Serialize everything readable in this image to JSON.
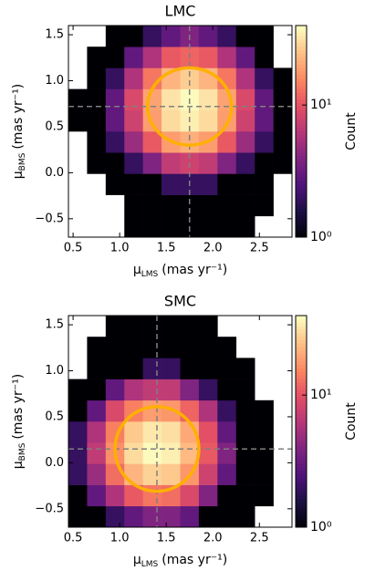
{
  "chart_data": [
    {
      "type": "heatmap",
      "title": "LMC",
      "x_label": {
        "symbol": "μ",
        "sub": "LMS",
        "unit": "(mas yr⁻¹)"
      },
      "y_label": {
        "symbol": "μ",
        "sub": "BMS",
        "unit": "(mas yr⁻¹)"
      },
      "xlim": [
        0.45,
        2.85
      ],
      "ylim": [
        -0.7,
        1.6
      ],
      "xticks": [
        0.5,
        {
          "value": 1.0,
          "label": "1.0"
        },
        1.5,
        {
          "value": 2.0,
          "label": "2.0"
        },
        2.5
      ],
      "yticks": [
        {
          "value": -0.5,
          "label": "−0.5"
        },
        {
          "value": 0.0,
          "label": "0.0"
        },
        0.5,
        {
          "value": 1.0,
          "label": "1.0"
        },
        1.5
      ],
      "x_bins": [
        0.45,
        0.65,
        0.85,
        1.05,
        1.25,
        1.45,
        1.65,
        1.85,
        2.05,
        2.25,
        2.45,
        2.65,
        2.85
      ],
      "y_bins": [
        -0.7,
        -0.47,
        -0.24,
        -0.01,
        0.22,
        0.45,
        0.68,
        0.91,
        1.14,
        1.37,
        1.6
      ],
      "counts": [
        [
          0,
          0,
          0,
          1,
          1,
          1,
          1,
          1,
          1,
          1,
          0,
          0
        ],
        [
          0,
          0,
          0,
          1,
          1,
          1,
          1,
          1,
          1,
          1,
          1,
          0
        ],
        [
          0,
          0,
          1,
          1,
          1,
          2,
          2,
          2,
          1,
          1,
          1,
          0
        ],
        [
          0,
          1,
          1,
          2,
          4,
          7,
          8,
          7,
          4,
          2,
          1,
          1
        ],
        [
          0,
          1,
          2,
          5,
          11,
          19,
          22,
          19,
          11,
          5,
          2,
          1
        ],
        [
          1,
          1,
          3,
          8,
          19,
          31,
          36,
          31,
          19,
          8,
          3,
          1
        ],
        [
          1,
          1,
          3,
          9,
          20,
          33,
          39,
          33,
          20,
          9,
          3,
          1
        ],
        [
          0,
          1,
          2,
          6,
          14,
          23,
          28,
          23,
          14,
          6,
          2,
          1
        ],
        [
          0,
          1,
          1,
          3,
          6,
          11,
          12,
          11,
          6,
          3,
          1,
          0
        ],
        [
          0,
          0,
          1,
          1,
          2,
          3,
          4,
          3,
          2,
          1,
          1,
          0
        ]
      ],
      "colormap": "magma",
      "color_scale": "log",
      "clim": [
        1,
        40
      ],
      "cticks": [
        {
          "value": 1,
          "label": "10⁰"
        },
        {
          "value": 10,
          "label": "10¹"
        }
      ],
      "colorbar_label": "Count",
      "circle": {
        "center": [
          1.75,
          0.72
        ],
        "radius_x": 0.45,
        "radius_y": 0.42,
        "color": "#ffb000"
      },
      "crosshair_color": "#808080"
    },
    {
      "type": "heatmap",
      "title": "SMC",
      "x_label": {
        "symbol": "μ",
        "sub": "LMS",
        "unit": "(mas yr⁻¹)"
      },
      "y_label": {
        "symbol": "μ",
        "sub": "BMS",
        "unit": "(mas yr⁻¹)"
      },
      "xlim": [
        0.45,
        2.85
      ],
      "ylim": [
        -0.7,
        1.6
      ],
      "xticks": [
        0.5,
        {
          "value": 1.0,
          "label": "1.0"
        },
        1.5,
        {
          "value": 2.0,
          "label": "2.0"
        },
        2.5
      ],
      "yticks": [
        {
          "value": -0.5,
          "label": "−0.5"
        },
        {
          "value": 0.0,
          "label": "0.0"
        },
        0.5,
        {
          "value": 1.0,
          "label": "1.0"
        },
        1.5
      ],
      "x_bins": [
        0.45,
        0.65,
        0.85,
        1.05,
        1.25,
        1.45,
        1.65,
        1.85,
        2.05,
        2.25,
        2.45,
        2.65,
        2.85
      ],
      "y_bins": [
        -0.7,
        -0.47,
        -0.24,
        -0.01,
        0.22,
        0.45,
        0.68,
        0.91,
        1.14,
        1.37,
        1.6
      ],
      "counts": [
        [
          1,
          1,
          2,
          3,
          4,
          4,
          3,
          1,
          1,
          1,
          0,
          0
        ],
        [
          1,
          3,
          6,
          11,
          14,
          13,
          9,
          4,
          1,
          1,
          1,
          0
        ],
        [
          2,
          5,
          13,
          23,
          29,
          27,
          18,
          8,
          3,
          1,
          1,
          0
        ],
        [
          2,
          7,
          17,
          31,
          39,
          36,
          24,
          11,
          4,
          1,
          1,
          0
        ],
        [
          2,
          6,
          15,
          27,
          34,
          32,
          21,
          10,
          3,
          1,
          1,
          0
        ],
        [
          1,
          3,
          9,
          15,
          19,
          18,
          12,
          6,
          2,
          1,
          1,
          0
        ],
        [
          1,
          1,
          3,
          6,
          7,
          7,
          4,
          2,
          1,
          1,
          0,
          0
        ],
        [
          0,
          1,
          1,
          1,
          2,
          2,
          1,
          1,
          1,
          1,
          0,
          0
        ],
        [
          0,
          1,
          1,
          1,
          1,
          1,
          1,
          1,
          1,
          0,
          0,
          0
        ],
        [
          0,
          0,
          1,
          1,
          1,
          1,
          1,
          1,
          0,
          0,
          0,
          0
        ]
      ],
      "colormap": "magma",
      "color_scale": "log",
      "clim": [
        1,
        40
      ],
      "cticks": [
        {
          "value": 1,
          "label": "10⁰"
        },
        {
          "value": 10,
          "label": "10¹"
        }
      ],
      "colorbar_label": "Count",
      "circle": {
        "center": [
          1.4,
          0.15
        ],
        "radius_x": 0.45,
        "radius_y": 0.46,
        "color": "#ffb000"
      },
      "crosshair_color": "#808080"
    }
  ]
}
